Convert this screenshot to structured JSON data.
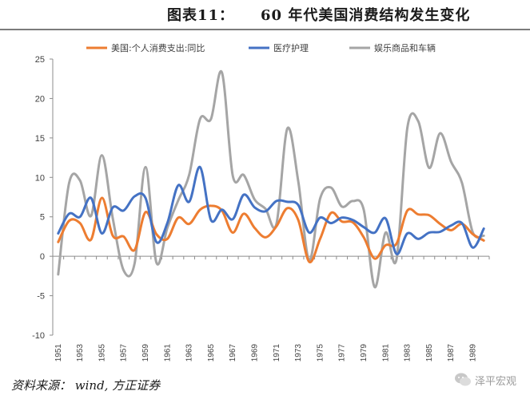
{
  "header": {
    "figure_label": "图表11：",
    "figure_title": "60 年代美国消费结构发生变化"
  },
  "footer": {
    "source": "资料来源： wind, 方正证券",
    "watermark": "泽平宏观"
  },
  "chart_data": {
    "type": "line",
    "title": "60 年代美国消费结构发生变化",
    "xlabel": "",
    "ylabel": "",
    "ylim": [
      -10,
      25
    ],
    "yticks": [
      -10,
      -5,
      0,
      5,
      10,
      15,
      20,
      25
    ],
    "grid": false,
    "legend_position": "top",
    "x": [
      1951,
      1952,
      1953,
      1954,
      1955,
      1956,
      1957,
      1958,
      1959,
      1960,
      1961,
      1962,
      1963,
      1964,
      1965,
      1966,
      1967,
      1968,
      1969,
      1970,
      1971,
      1972,
      1973,
      1974,
      1975,
      1976,
      1977,
      1978,
      1979,
      1980,
      1981,
      1982,
      1983,
      1984,
      1985,
      1986,
      1987,
      1988,
      1989,
      1990
    ],
    "xtick_labels": [
      "1951",
      "1953",
      "1955",
      "1957",
      "1959",
      "1961",
      "1963",
      "1965",
      "1967",
      "1969",
      "1971",
      "1973",
      "1975",
      "1977",
      "1979",
      "1981",
      "1983",
      "1985",
      "1987",
      "1989"
    ],
    "series": [
      {
        "name": "美国:个人消费支出:同比",
        "color": "#ED7D31",
        "values": [
          1.8,
          4.5,
          4.2,
          2.1,
          7.4,
          2.6,
          2.5,
          0.8,
          5.6,
          2.8,
          2.2,
          4.9,
          4.1,
          5.9,
          6.4,
          5.8,
          3.0,
          5.4,
          3.6,
          2.4,
          3.8,
          6.1,
          4.6,
          -0.7,
          2.2,
          5.5,
          4.4,
          4.3,
          2.4,
          -0.3,
          1.4,
          1.6,
          5.8,
          5.3,
          5.2,
          4.1,
          3.3,
          4.1,
          2.8,
          2.0
        ]
      },
      {
        "name": "医疗护理",
        "color": "#4472C4",
        "values": [
          2.9,
          5.4,
          5.0,
          7.4,
          2.9,
          6.2,
          5.8,
          7.6,
          7.4,
          1.8,
          4.2,
          9.0,
          6.9,
          11.3,
          4.6,
          5.9,
          4.7,
          7.8,
          6.2,
          5.7,
          7.0,
          6.9,
          6.5,
          3.0,
          4.9,
          4.2,
          4.9,
          4.6,
          3.7,
          3.0,
          4.8,
          0.3,
          2.9,
          2.2,
          3.0,
          3.1,
          3.9,
          4.2,
          1.1,
          3.5
        ]
      },
      {
        "name": "娱乐商品和车辆",
        "color": "#A5A5A5",
        "values": [
          -2.3,
          9.3,
          9.6,
          5.1,
          12.8,
          4.8,
          -1.8,
          -0.9,
          11.3,
          -0.8,
          3.6,
          7.1,
          10.3,
          17.4,
          17.4,
          23.3,
          10.2,
          10.3,
          7.2,
          6.0,
          4.1,
          16.2,
          9.5,
          -0.5,
          7.3,
          8.7,
          6.3,
          7.0,
          5.9,
          -3.9,
          3.0,
          -0.4,
          16.3,
          17.1,
          11.2,
          15.6,
          12.0,
          9.3,
          3.0,
          2.6
        ]
      }
    ]
  }
}
